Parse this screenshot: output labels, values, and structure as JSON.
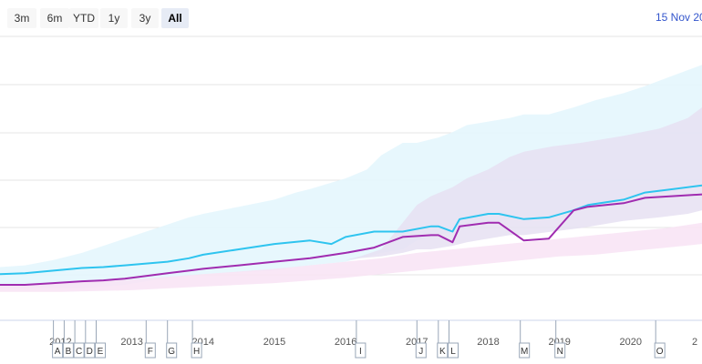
{
  "toolbar": {
    "buttons": [
      {
        "label": "3m",
        "active": false
      },
      {
        "label": "6m",
        "active": false
      },
      {
        "label": "YTD",
        "active": false
      },
      {
        "label": "1y",
        "active": false
      },
      {
        "label": "3y",
        "active": false
      },
      {
        "label": "All",
        "active": true
      }
    ],
    "date_label": "15 Nov 20"
  },
  "chart_data": {
    "type": "line",
    "title": "",
    "xlabel": "",
    "ylabel": "",
    "x_range": [
      2011.15,
      2021.0
    ],
    "x_ticks": [
      "2012",
      "2013",
      "2014",
      "2015",
      "2016",
      "2017",
      "2018",
      "2019",
      "2020",
      "2"
    ],
    "grid": true,
    "colors": {
      "cyan": "#2ec4ef",
      "purple": "#a02cb0",
      "cyan_band": "#e3f6fd",
      "purple_band": "#e6e0f2",
      "pink_band": "#f8e3f5"
    },
    "series": [
      {
        "color": "#2ec4ef",
        "x": [
          2011.15,
          2011.5,
          2011.9,
          2012.3,
          2012.6,
          2012.9,
          2013.2,
          2013.5,
          2013.8,
          2014.0,
          2014.5,
          2015.0,
          2015.5,
          2015.8,
          2016.0,
          2016.4,
          2016.8,
          2017.2,
          2017.3,
          2017.5,
          2017.6,
          2018.0,
          2018.15,
          2018.5,
          2018.85,
          2019.2,
          2019.4,
          2019.9,
          2020.2,
          2020.6,
          2021.0
        ],
        "values": [
          26,
          26.5,
          28,
          29.5,
          30,
          31,
          32,
          33,
          35,
          37,
          40,
          43,
          45,
          43,
          47,
          50,
          50,
          53,
          53,
          50,
          57,
          60,
          60,
          57,
          58,
          62,
          65,
          68,
          72,
          74,
          76
        ]
      },
      {
        "color": "#a02cb0",
        "x": [
          2011.15,
          2011.5,
          2011.9,
          2012.3,
          2012.6,
          2012.9,
          2013.2,
          2013.5,
          2013.8,
          2014.0,
          2014.5,
          2015.0,
          2015.5,
          2016.0,
          2016.4,
          2016.8,
          2017.2,
          2017.3,
          2017.5,
          2017.6,
          2018.0,
          2018.15,
          2018.5,
          2018.85,
          2019.2,
          2019.4,
          2019.9,
          2020.2,
          2020.6,
          2021.0
        ],
        "values": [
          20,
          20,
          21,
          22,
          22.5,
          23.5,
          25,
          26.5,
          28,
          29,
          31,
          33,
          35,
          38,
          41,
          47,
          48,
          48,
          44,
          53,
          55,
          55,
          45,
          46,
          62,
          64,
          66,
          69,
          70,
          71
        ]
      }
    ],
    "bands": [
      {
        "color": "#e3f6fd",
        "x": [
          2011.15,
          2011.5,
          2011.9,
          2012.3,
          2012.6,
          2012.9,
          2013.2,
          2013.5,
          2013.8,
          2014.0,
          2014.5,
          2015.0,
          2015.3,
          2015.5,
          2016.0,
          2016.3,
          2016.5,
          2016.8,
          2017.0,
          2017.3,
          2017.5,
          2017.7,
          2018.0,
          2018.3,
          2018.5,
          2018.85,
          2019.2,
          2019.5,
          2019.9,
          2020.2,
          2020.6,
          2021.0
        ],
        "low": [
          18,
          18,
          18,
          18,
          19,
          20,
          22,
          24,
          25,
          26,
          27,
          28,
          30,
          31,
          33,
          36,
          38,
          40,
          45,
          48,
          50,
          52,
          55,
          57,
          58,
          58,
          62,
          65,
          68,
          72,
          75,
          78
        ],
        "high": [
          30,
          31,
          34,
          38,
          42,
          46,
          50,
          54,
          58,
          60,
          64,
          68,
          72,
          74,
          80,
          85,
          93,
          100,
          100,
          103,
          106,
          110,
          112,
          114,
          116,
          116,
          120,
          124,
          128,
          132,
          138,
          144
        ]
      },
      {
        "color": "#e6e0f2",
        "x": [
          2011.15,
          2011.9,
          2012.5,
          2013.2,
          2014.0,
          2014.5,
          2015.0,
          2015.5,
          2016.0,
          2016.2,
          2016.5,
          2016.8,
          2017.0,
          2017.2,
          2017.5,
          2017.7,
          2018.0,
          2018.3,
          2018.5,
          2018.9,
          2019.3,
          2019.9,
          2020.4,
          2020.8,
          2021.0
        ],
        "low": [
          21,
          21,
          22,
          24,
          26,
          28,
          30,
          32,
          34,
          35,
          36,
          38,
          40,
          40,
          42,
          44,
          46,
          48,
          48,
          50,
          52,
          56,
          58,
          60,
          62
        ],
        "high": [
          21,
          21,
          22,
          24,
          26,
          28,
          30,
          32,
          34,
          36,
          40,
          55,
          65,
          70,
          75,
          80,
          85,
          92,
          95,
          98,
          100,
          104,
          108,
          114,
          120
        ]
      },
      {
        "color": "#f8e3f5",
        "x": [
          2011.15,
          2012.0,
          2013.0,
          2014.0,
          2015.0,
          2016.0,
          2016.5,
          2017.0,
          2017.5,
          2018.0,
          2018.5,
          2019.0,
          2019.5,
          2020.0,
          2020.5,
          2021.0
        ],
        "low": [
          16,
          16,
          17,
          19,
          21,
          24,
          26,
          28,
          30,
          32,
          34,
          36,
          37,
          39,
          41,
          43
        ],
        "high": [
          20,
          21,
          23,
          26,
          29,
          33,
          35,
          38,
          40,
          42,
          44,
          46,
          48,
          50,
          52,
          55
        ]
      }
    ],
    "flags": [
      {
        "label": "A",
        "x": 2011.9
      },
      {
        "label": "B",
        "x": 2012.05
      },
      {
        "label": "C",
        "x": 2012.2
      },
      {
        "label": "D",
        "x": 2012.35
      },
      {
        "label": "E",
        "x": 2012.5
      },
      {
        "label": "F",
        "x": 2013.2
      },
      {
        "label": "G",
        "x": 2013.5
      },
      {
        "label": "H",
        "x": 2013.85
      },
      {
        "label": "I",
        "x": 2016.15
      },
      {
        "label": "J",
        "x": 2017.0
      },
      {
        "label": "K",
        "x": 2017.3
      },
      {
        "label": "L",
        "x": 2017.45
      },
      {
        "label": "M",
        "x": 2018.45
      },
      {
        "label": "N",
        "x": 2018.95
      },
      {
        "label": "O",
        "x": 2020.35
      }
    ]
  }
}
